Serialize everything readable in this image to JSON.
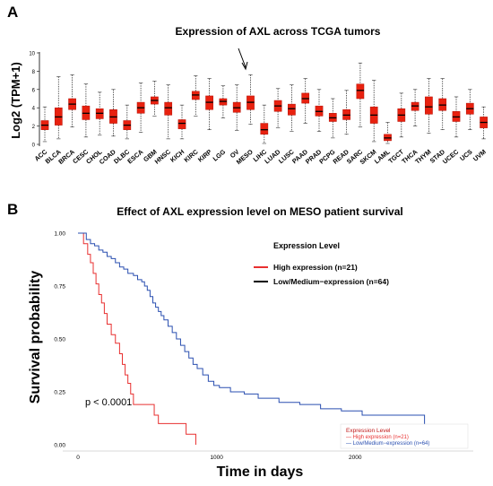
{
  "colors": {
    "box_fill": "#e8210f",
    "box_stroke": "#b41207",
    "high": "#e83030",
    "low": "#2a4fb0",
    "legend_title": "#c01818",
    "axis": "#999999"
  },
  "panel_a": {
    "label": "A",
    "title": "Expression of AXL across TCGA tumors",
    "ylabel": "Log2 (TPM+1)"
  },
  "panel_b": {
    "label": "B",
    "title": "Effect of AXL expression level on MESO patient survival",
    "ylabel": "Survival probability",
    "xlabel": "Time in days",
    "pvalue": "p < 0.0001",
    "legend": {
      "title": "Expression Level",
      "high": "High expression (n=21)",
      "low": "Low/Medium−expression (n=64)"
    },
    "legend_small": {
      "title": "Expression Level",
      "high": "— High expression (n=21)",
      "low": "— Low/Medium−expression (n=64)"
    }
  },
  "chart_data": [
    {
      "type": "box",
      "title": "Expression of AXL across TCGA tumors",
      "ylabel": "Log2 (TPM+1)",
      "ylim": [
        0,
        10
      ],
      "yticks": [
        0,
        2,
        4,
        6,
        8,
        10
      ],
      "highlight_category": "MESO",
      "categories": [
        "ACC",
        "BLCA",
        "BRCA",
        "CESC",
        "CHOL",
        "COAD",
        "DLBC",
        "ESCA",
        "GBM",
        "HNSC",
        "KICH",
        "KIRC",
        "KIRP",
        "LGG",
        "OV",
        "MESO",
        "LIHC",
        "LUAD",
        "LUSC",
        "PAAD",
        "PRAD",
        "PCPG",
        "READ",
        "SARC",
        "SKCM",
        "LAML",
        "TGCT",
        "THCA",
        "THYM",
        "STAD",
        "UCEC",
        "UCS",
        "UVM"
      ],
      "boxes": [
        {
          "min": 0.3,
          "q1": 1.6,
          "median": 2.1,
          "q3": 2.6,
          "max": 4.1
        },
        {
          "min": 0.6,
          "q1": 2.1,
          "median": 3.0,
          "q3": 4.0,
          "max": 7.4
        },
        {
          "min": 1.9,
          "q1": 3.8,
          "median": 4.4,
          "q3": 5.0,
          "max": 7.6
        },
        {
          "min": 0.8,
          "q1": 2.7,
          "median": 3.4,
          "q3": 4.2,
          "max": 6.6
        },
        {
          "min": 1.0,
          "q1": 2.8,
          "median": 3.4,
          "q3": 3.9,
          "max": 5.7
        },
        {
          "min": 0.9,
          "q1": 2.3,
          "median": 3.0,
          "q3": 3.8,
          "max": 6.0
        },
        {
          "min": 0.6,
          "q1": 1.6,
          "median": 2.1,
          "q3": 2.6,
          "max": 4.3
        },
        {
          "min": 1.3,
          "q1": 3.4,
          "median": 4.0,
          "q3": 4.6,
          "max": 6.7
        },
        {
          "min": 3.1,
          "q1": 4.4,
          "median": 4.8,
          "q3": 5.2,
          "max": 6.9
        },
        {
          "min": 0.6,
          "q1": 3.2,
          "median": 4.0,
          "q3": 4.6,
          "max": 6.5
        },
        {
          "min": 0.6,
          "q1": 1.7,
          "median": 2.3,
          "q3": 2.7,
          "max": 4.3
        },
        {
          "min": 3.1,
          "q1": 4.9,
          "median": 5.4,
          "q3": 5.8,
          "max": 7.5
        },
        {
          "min": 1.6,
          "q1": 3.8,
          "median": 4.6,
          "q3": 5.3,
          "max": 7.2
        },
        {
          "min": 2.9,
          "q1": 4.3,
          "median": 4.7,
          "q3": 5.0,
          "max": 6.4
        },
        {
          "min": 1.5,
          "q1": 3.5,
          "median": 4.0,
          "q3": 4.6,
          "max": 6.5
        },
        {
          "min": 2.2,
          "q1": 3.8,
          "median": 4.6,
          "q3": 5.3,
          "max": 7.6
        },
        {
          "min": 0.1,
          "q1": 1.1,
          "median": 1.6,
          "q3": 2.3,
          "max": 4.3
        },
        {
          "min": 1.8,
          "q1": 3.6,
          "median": 4.2,
          "q3": 4.8,
          "max": 6.1
        },
        {
          "min": 1.4,
          "q1": 3.2,
          "median": 3.9,
          "q3": 4.4,
          "max": 6.5
        },
        {
          "min": 2.3,
          "q1": 4.5,
          "median": 5.0,
          "q3": 5.6,
          "max": 7.2
        },
        {
          "min": 1.4,
          "q1": 3.1,
          "median": 3.6,
          "q3": 4.2,
          "max": 6.0
        },
        {
          "min": 0.7,
          "q1": 2.5,
          "median": 2.9,
          "q3": 3.4,
          "max": 5.0
        },
        {
          "min": 1.1,
          "q1": 2.7,
          "median": 3.2,
          "q3": 3.8,
          "max": 5.9
        },
        {
          "min": 1.9,
          "q1": 5.0,
          "median": 5.9,
          "q3": 6.6,
          "max": 8.9
        },
        {
          "min": 0.3,
          "q1": 2.3,
          "median": 3.2,
          "q3": 4.1,
          "max": 7.0
        },
        {
          "min": 0.1,
          "q1": 0.4,
          "median": 0.7,
          "q3": 1.1,
          "max": 2.4
        },
        {
          "min": 0.8,
          "q1": 2.5,
          "median": 3.2,
          "q3": 3.9,
          "max": 5.6
        },
        {
          "min": 2.0,
          "q1": 3.7,
          "median": 4.2,
          "q3": 4.6,
          "max": 6.0
        },
        {
          "min": 1.2,
          "q1": 3.3,
          "median": 4.1,
          "q3": 5.2,
          "max": 7.2
        },
        {
          "min": 1.6,
          "q1": 3.7,
          "median": 4.3,
          "q3": 5.0,
          "max": 7.2
        },
        {
          "min": 0.8,
          "q1": 2.5,
          "median": 3.0,
          "q3": 3.6,
          "max": 5.2
        },
        {
          "min": 1.6,
          "q1": 3.3,
          "median": 3.9,
          "q3": 4.5,
          "max": 6.0
        },
        {
          "min": 0.6,
          "q1": 1.8,
          "median": 2.4,
          "q3": 3.0,
          "max": 4.1
        }
      ]
    },
    {
      "type": "line",
      "title": "Effect of AXL expression level on MESO patient survival",
      "xlabel": "Time in days",
      "ylabel": "Survival probability",
      "xlim": [
        0,
        2800
      ],
      "ylim": [
        0,
        1
      ],
      "xticks": [
        0,
        1000,
        2000
      ],
      "yticks": [
        "0.00",
        "0.25",
        "0.50",
        "0.75",
        "1.00"
      ],
      "annotation": "p < 0.0001",
      "series": [
        {
          "name": "High expression (n=21)",
          "step": true,
          "x": [
            0,
            40,
            70,
            90,
            110,
            130,
            150,
            170,
            190,
            210,
            240,
            270,
            300,
            320,
            340,
            360,
            380,
            400,
            430,
            550,
            580,
            620,
            780,
            850
          ],
          "y": [
            1.0,
            0.95,
            0.9,
            0.86,
            0.81,
            0.76,
            0.71,
            0.67,
            0.62,
            0.57,
            0.52,
            0.48,
            0.43,
            0.38,
            0.33,
            0.29,
            0.24,
            0.19,
            0.19,
            0.14,
            0.1,
            0.1,
            0.05,
            0.0
          ]
        },
        {
          "name": "Low/Medium−expression (n=64)",
          "step": true,
          "x": [
            0,
            60,
            90,
            120,
            150,
            180,
            210,
            240,
            270,
            300,
            330,
            360,
            400,
            430,
            460,
            480,
            500,
            520,
            540,
            560,
            580,
            600,
            620,
            650,
            680,
            710,
            740,
            770,
            800,
            830,
            860,
            900,
            940,
            980,
            1020,
            1100,
            1200,
            1300,
            1450,
            1600,
            1750,
            1900,
            2050,
            2200,
            2400,
            2500,
            2650,
            2720
          ],
          "y": [
            1.0,
            0.97,
            0.95,
            0.94,
            0.92,
            0.91,
            0.89,
            0.88,
            0.86,
            0.84,
            0.83,
            0.81,
            0.8,
            0.78,
            0.77,
            0.75,
            0.73,
            0.7,
            0.67,
            0.65,
            0.63,
            0.61,
            0.59,
            0.56,
            0.53,
            0.5,
            0.47,
            0.44,
            0.41,
            0.38,
            0.36,
            0.33,
            0.3,
            0.28,
            0.27,
            0.25,
            0.24,
            0.22,
            0.2,
            0.19,
            0.17,
            0.16,
            0.14,
            0.14,
            0.14,
            0.07,
            0.07,
            0.0
          ]
        }
      ]
    }
  ]
}
